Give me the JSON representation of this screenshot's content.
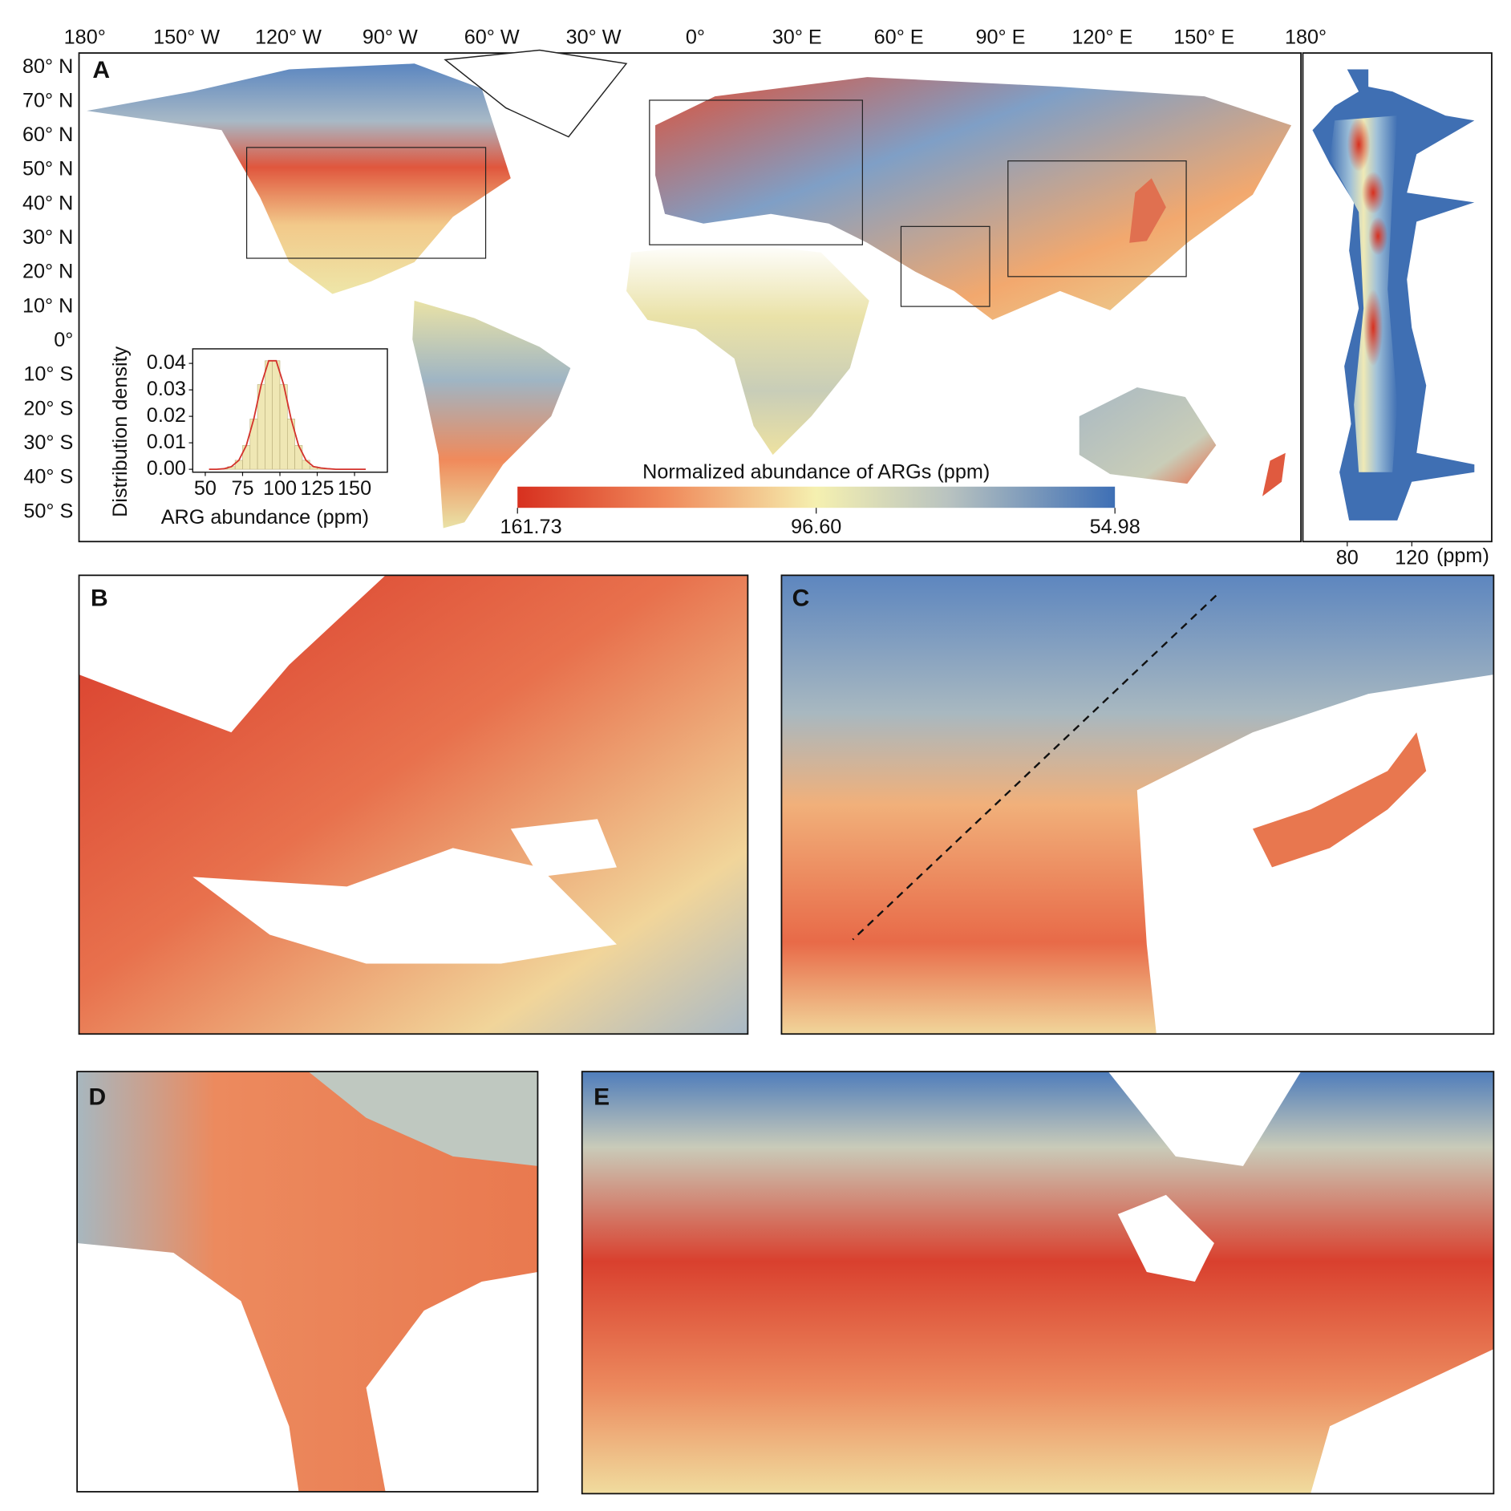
{
  "panel_labels": [
    "A",
    "B",
    "C",
    "D",
    "E"
  ],
  "lon_labels": [
    "180°",
    "150° W",
    "120° W",
    "90° W",
    "60° W",
    "30° W",
    "0°",
    "30° E",
    "60° E",
    "90° E",
    "120° E",
    "150° E",
    "180°"
  ],
  "lat_labels": [
    "80° N",
    "70° N",
    "60° N",
    "50° N",
    "40° N",
    "30° N",
    "20° N",
    "10° N",
    "0°",
    "10° S",
    "20° S",
    "30° S",
    "40° S",
    "50° S"
  ],
  "colorbar": {
    "title": "Normalized abundance of ARGs (ppm)",
    "ticks": [
      161.73,
      {
        "value": 96.6,
        "label": "96.60"
      },
      54.98
    ]
  },
  "inset": {
    "type": "histogram",
    "xlabel": "ARG abundance (ppm)",
    "ylabel": "Distribution density",
    "bins": [
      50,
      55,
      60,
      65,
      70,
      75,
      80,
      85,
      90,
      95,
      100,
      105,
      110,
      115,
      120,
      125,
      130,
      135,
      140,
      145,
      150,
      155,
      160
    ],
    "values": [
      0.0,
      0.0,
      0.0002,
      0.001,
      0.0034,
      0.009,
      0.019,
      0.032,
      0.041,
      0.041,
      0.032,
      0.019,
      0.009,
      0.0034,
      0.001,
      0.0005,
      0.0002,
      0.0,
      0.0,
      0.0,
      0.0,
      0.0
    ],
    "color": "#efe7b4",
    "line_color": "#d4322b",
    "xlim": [
      41.6,
      172
    ],
    "ylim": [
      -0.0011,
      0.0455
    ],
    "xticks": [
      50,
      75,
      100,
      125,
      150
    ],
    "yticks": [
      {
        "value": 0,
        "label": "0.00"
      },
      0.01,
      0.02,
      0.03,
      0.04
    ]
  },
  "profile": {
    "unit": "(ppm)",
    "xlim": [
      52.5,
      169.5
    ],
    "xticks": [
      80,
      120
    ]
  }
}
